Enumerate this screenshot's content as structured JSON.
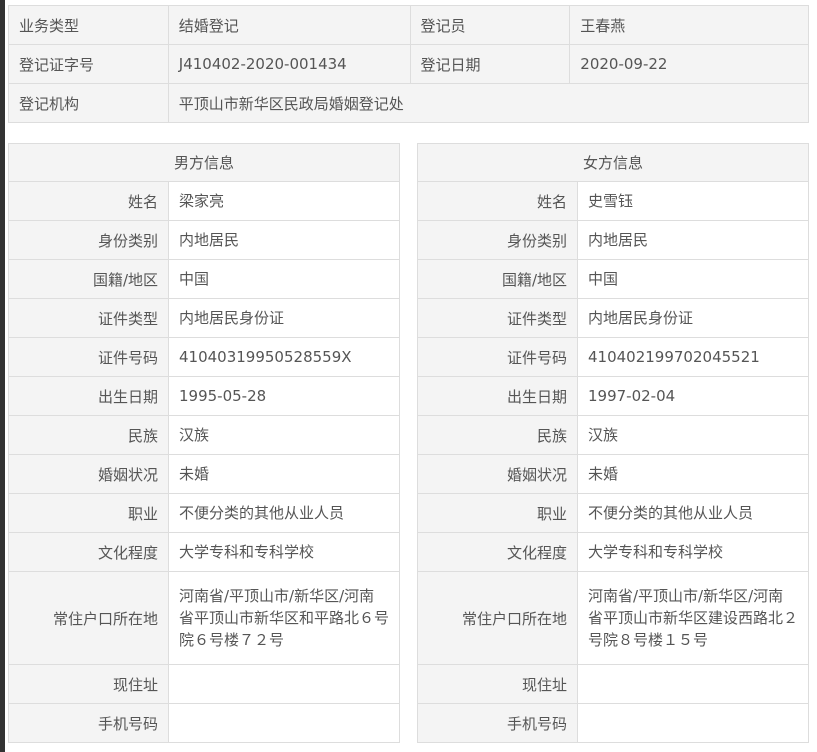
{
  "top": {
    "business_type_label": "业务类型",
    "business_type": "结婚登记",
    "registrar_label": "登记员",
    "registrar": "王春燕",
    "cert_no_label": "登记证字号",
    "cert_no": "J410402-2020-001434",
    "reg_date_label": "登记日期",
    "reg_date": "2020-09-22",
    "office_label": "登记机构",
    "office": "平顶山市新华区民政局婚姻登记处"
  },
  "male": {
    "title": "男方信息",
    "rows": [
      {
        "label": "姓名",
        "value": "梁家亮"
      },
      {
        "label": "身份类别",
        "value": "内地居民"
      },
      {
        "label": "国籍/地区",
        "value": "中国"
      },
      {
        "label": "证件类型",
        "value": "内地居民身份证"
      },
      {
        "label": "证件号码",
        "value": "41040319950528559X"
      },
      {
        "label": "出生日期",
        "value": "1995-05-28"
      },
      {
        "label": "民族",
        "value": "汉族"
      },
      {
        "label": "婚姻状况",
        "value": "未婚"
      },
      {
        "label": "职业",
        "value": "不便分类的其他从业人员"
      },
      {
        "label": "文化程度",
        "value": "大学专科和专科学校"
      },
      {
        "label": "常住户口所在地",
        "value": "河南省/平顶山市/新华区/河南省平顶山市新华区和平路北６号院６号楼７２号"
      },
      {
        "label": "现住址",
        "value": ""
      },
      {
        "label": "手机号码",
        "value": ""
      }
    ]
  },
  "female": {
    "title": "女方信息",
    "rows": [
      {
        "label": "姓名",
        "value": "史雪钰"
      },
      {
        "label": "身份类别",
        "value": "内地居民"
      },
      {
        "label": "国籍/地区",
        "value": "中国"
      },
      {
        "label": "证件类型",
        "value": "内地居民身份证"
      },
      {
        "label": "证件号码",
        "value": "410402199702045521"
      },
      {
        "label": "出生日期",
        "value": "1997-02-04"
      },
      {
        "label": "民族",
        "value": "汉族"
      },
      {
        "label": "婚姻状况",
        "value": "未婚"
      },
      {
        "label": "职业",
        "value": "不便分类的其他从业人员"
      },
      {
        "label": "文化程度",
        "value": "大学专科和专科学校"
      },
      {
        "label": "常住户口所在地",
        "value": "河南省/平顶山市/新华区/河南省平顶山市新华区建设西路北２号院８号楼１５号"
      },
      {
        "label": "现住址",
        "value": ""
      },
      {
        "label": "手机号码",
        "value": ""
      }
    ]
  }
}
